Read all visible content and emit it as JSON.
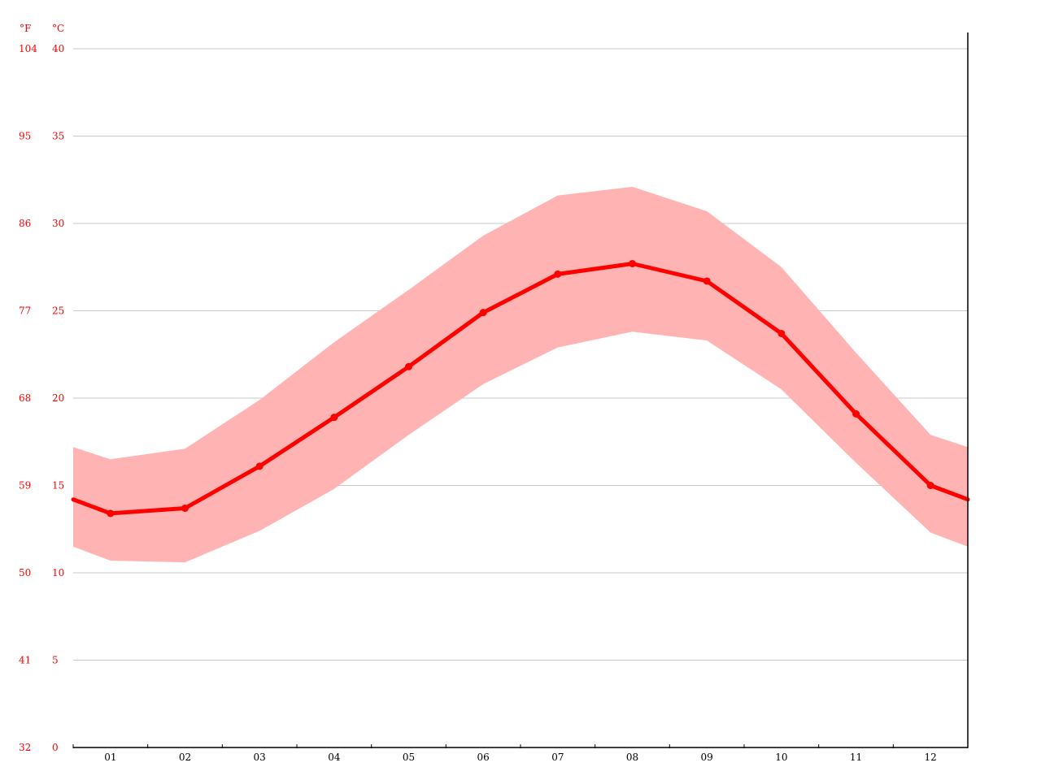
{
  "chart_data": {
    "type": "area",
    "title": "",
    "xlabel": "",
    "ylabel": "",
    "units": {
      "fahrenheit": "°F",
      "celsius": "°C"
    },
    "categories": [
      "01",
      "02",
      "03",
      "04",
      "05",
      "06",
      "07",
      "08",
      "09",
      "10",
      "11",
      "12"
    ],
    "ylim": [
      0,
      40
    ],
    "yticks_c": [
      "0",
      "5",
      "10",
      "15",
      "20",
      "25",
      "30",
      "35",
      "40"
    ],
    "yticks_f": [
      "32",
      "41",
      "50",
      "59",
      "68",
      "77",
      "86",
      "95",
      "104"
    ],
    "series": [
      {
        "kind": "line",
        "values": [
          13.4,
          13.7,
          16.1,
          18.9,
          21.8,
          24.9,
          27.1,
          27.7,
          26.7,
          23.7,
          19.1,
          15.0
        ]
      },
      {
        "kind": "band",
        "low": [
          10.7,
          10.6,
          12.4,
          14.8,
          17.9,
          20.8,
          22.9,
          23.8,
          23.3,
          20.5,
          16.3,
          12.3
        ],
        "high": [
          16.5,
          17.1,
          19.9,
          23.2,
          26.2,
          29.3,
          31.6,
          32.1,
          30.7,
          27.5,
          22.6,
          17.9
        ]
      }
    ],
    "edge_values": {
      "line": [
        14.2,
        14.2
      ],
      "low": [
        11.5,
        11.5
      ],
      "high": [
        17.2,
        17.2
      ]
    },
    "grid": true,
    "legend": "none",
    "colors": {
      "line": "#ff0000",
      "band": "#ffb3b3",
      "tick_text_y": "#ff0000",
      "tick_text_x": "#000000",
      "grid": "#c8c8c8",
      "axis": "#000000"
    }
  }
}
